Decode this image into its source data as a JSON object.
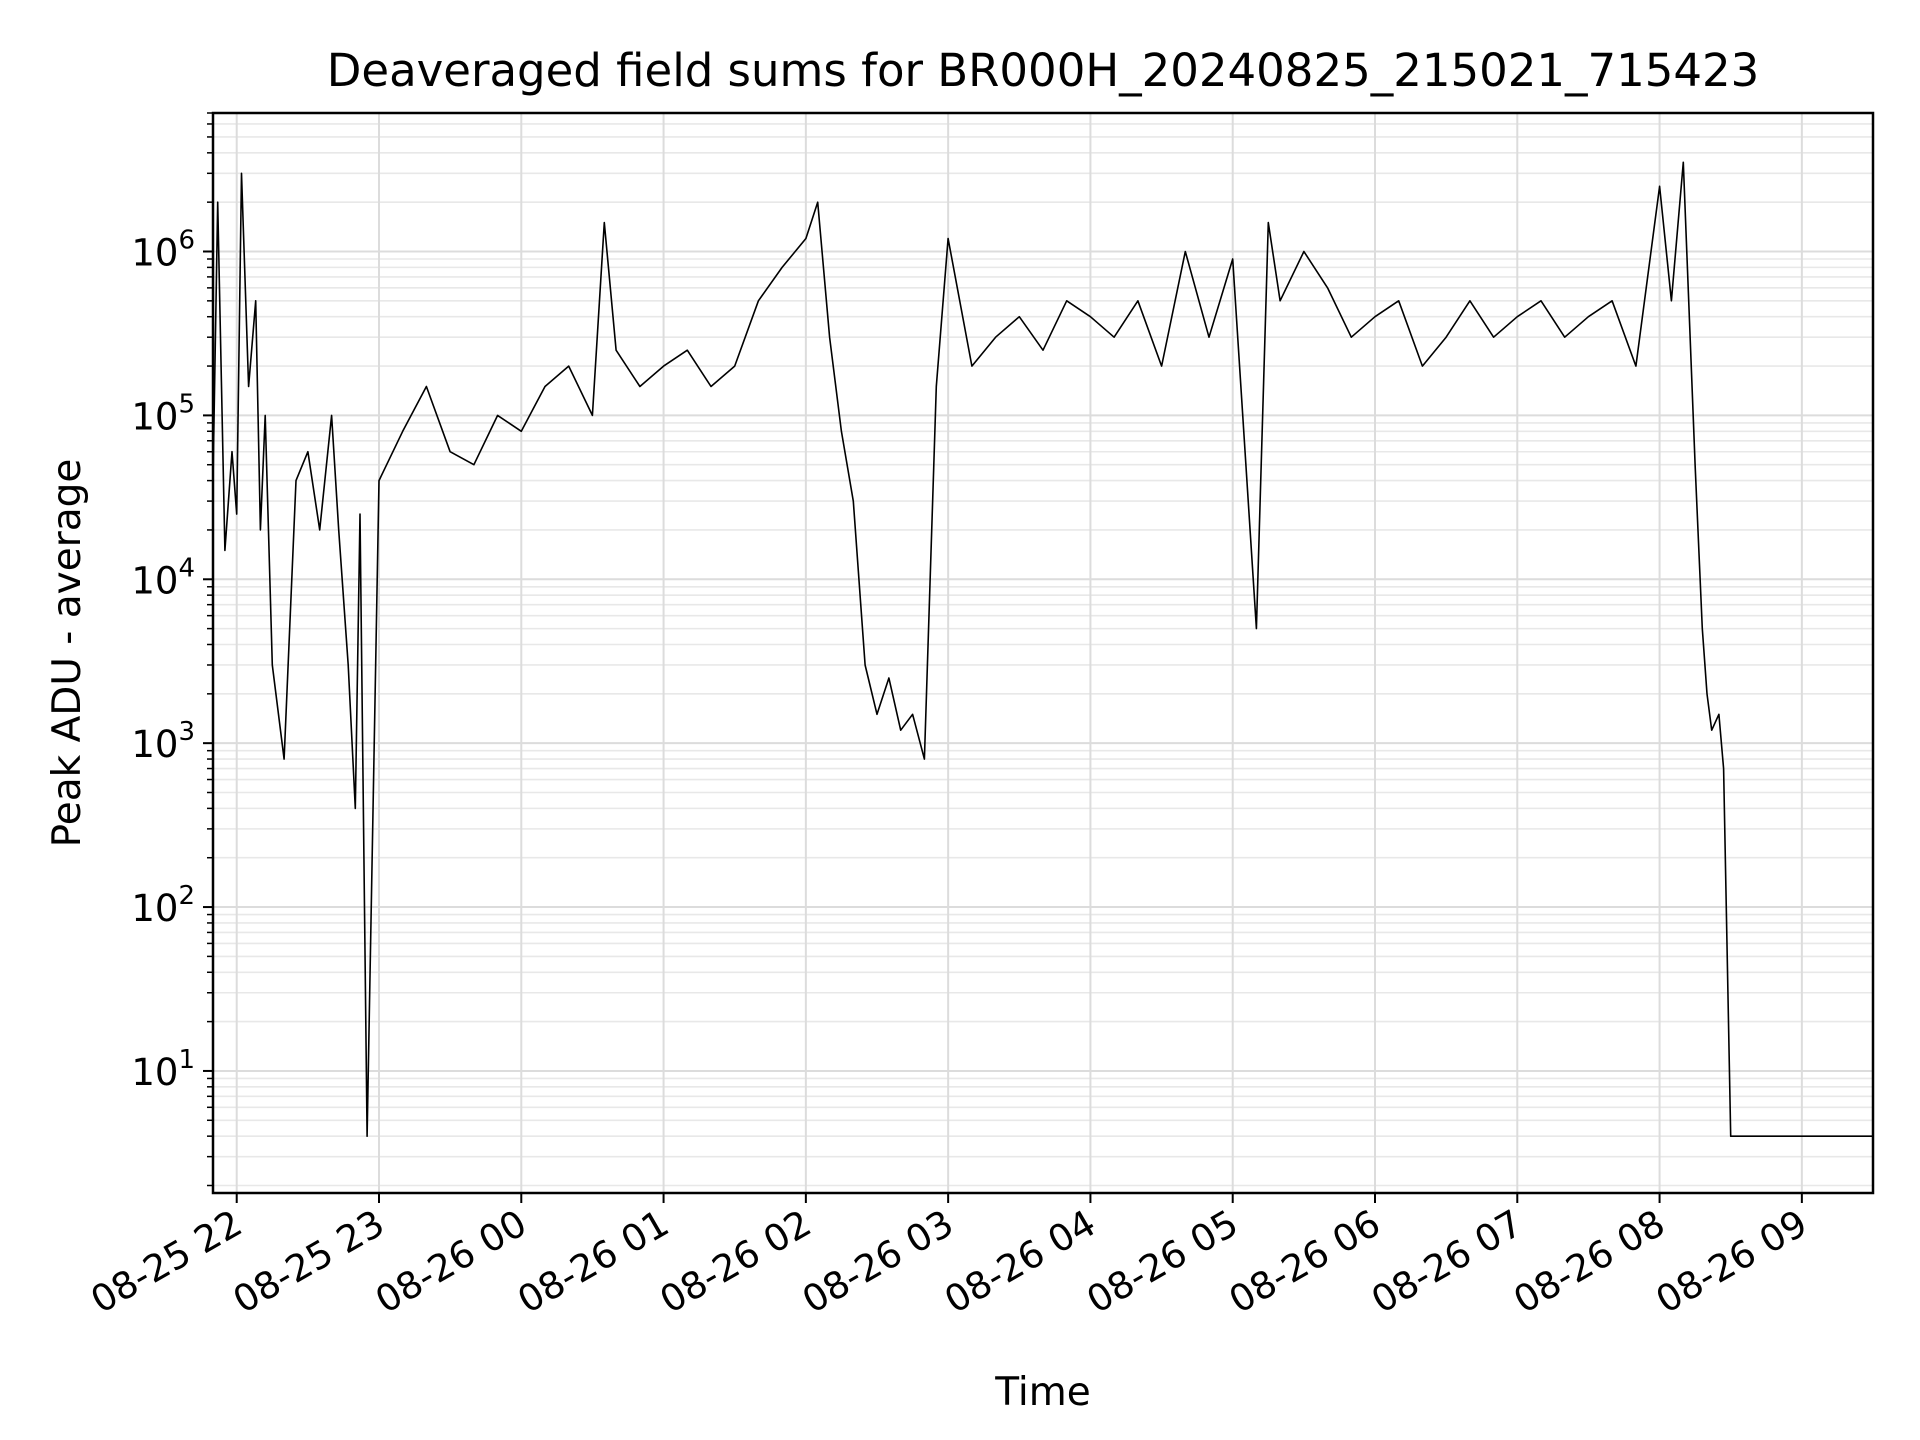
{
  "chart_data": {
    "type": "line",
    "title": "Deaveraged field sums for BR000H_20240825_215021_715423",
    "xlabel": "Time",
    "ylabel": "Peak ADU - average",
    "yscale": "log",
    "ylim": [
      1.8,
      7000000
    ],
    "xlim": [
      "2024-08-25 21:50",
      "2024-08-26 09:30"
    ],
    "grid": true,
    "line_color": "#000000",
    "x_ticks": [
      "08-25 22",
      "08-25 23",
      "08-26 00",
      "08-26 01",
      "08-26 02",
      "08-26 03",
      "08-26 04",
      "08-26 05",
      "08-26 06",
      "08-26 07",
      "08-26 08",
      "08-26 09"
    ],
    "y_ticks": [
      {
        "base": "10",
        "exp": "1"
      },
      {
        "base": "10",
        "exp": "2"
      },
      {
        "base": "10",
        "exp": "3"
      },
      {
        "base": "10",
        "exp": "4"
      },
      {
        "base": "10",
        "exp": "5"
      },
      {
        "base": "10",
        "exp": "6"
      }
    ],
    "x": [
      "2024-08-25 21:50",
      "2024-08-25 21:52",
      "2024-08-25 21:55",
      "2024-08-25 21:58",
      "2024-08-25 22:00",
      "2024-08-25 22:02",
      "2024-08-25 22:05",
      "2024-08-25 22:08",
      "2024-08-25 22:10",
      "2024-08-25 22:12",
      "2024-08-25 22:15",
      "2024-08-25 22:20",
      "2024-08-25 22:25",
      "2024-08-25 22:30",
      "2024-08-25 22:35",
      "2024-08-25 22:40",
      "2024-08-25 22:43",
      "2024-08-25 22:47",
      "2024-08-25 22:50",
      "2024-08-25 22:52",
      "2024-08-25 22:55",
      "2024-08-25 23:00",
      "2024-08-25 23:10",
      "2024-08-25 23:20",
      "2024-08-25 23:30",
      "2024-08-25 23:40",
      "2024-08-25 23:50",
      "2024-08-26 00:00",
      "2024-08-26 00:10",
      "2024-08-26 00:20",
      "2024-08-26 00:30",
      "2024-08-26 00:35",
      "2024-08-26 00:40",
      "2024-08-26 00:50",
      "2024-08-26 01:00",
      "2024-08-26 01:10",
      "2024-08-26 01:20",
      "2024-08-26 01:30",
      "2024-08-26 01:40",
      "2024-08-26 01:50",
      "2024-08-26 02:00",
      "2024-08-26 02:05",
      "2024-08-26 02:10",
      "2024-08-26 02:15",
      "2024-08-26 02:20",
      "2024-08-26 02:25",
      "2024-08-26 02:30",
      "2024-08-26 02:35",
      "2024-08-26 02:40",
      "2024-08-26 02:45",
      "2024-08-26 02:50",
      "2024-08-26 02:55",
      "2024-08-26 03:00",
      "2024-08-26 03:10",
      "2024-08-26 03:20",
      "2024-08-26 03:30",
      "2024-08-26 03:40",
      "2024-08-26 03:50",
      "2024-08-26 04:00",
      "2024-08-26 04:10",
      "2024-08-26 04:20",
      "2024-08-26 04:30",
      "2024-08-26 04:40",
      "2024-08-26 04:50",
      "2024-08-26 05:00",
      "2024-08-26 05:10",
      "2024-08-26 05:15",
      "2024-08-26 05:20",
      "2024-08-26 05:30",
      "2024-08-26 05:40",
      "2024-08-26 05:50",
      "2024-08-26 06:00",
      "2024-08-26 06:10",
      "2024-08-26 06:20",
      "2024-08-26 06:30",
      "2024-08-26 06:40",
      "2024-08-26 06:50",
      "2024-08-26 07:00",
      "2024-08-26 07:10",
      "2024-08-26 07:20",
      "2024-08-26 07:30",
      "2024-08-26 07:40",
      "2024-08-26 07:50",
      "2024-08-26 08:00",
      "2024-08-26 08:05",
      "2024-08-26 08:10",
      "2024-08-26 08:15",
      "2024-08-26 08:18",
      "2024-08-26 08:20",
      "2024-08-26 08:22",
      "2024-08-26 08:25",
      "2024-08-26 08:27",
      "2024-08-26 08:30",
      "2024-08-26 09:00",
      "2024-08-26 09:30"
    ],
    "y": [
      40000,
      2000000,
      15000,
      60000,
      25000,
      3000000,
      150000,
      500000,
      20000,
      100000,
      3000,
      800,
      40000,
      60000,
      20000,
      100000,
      20000,
      3000,
      400,
      25000,
      4,
      40000,
      80000,
      150000,
      60000,
      50000,
      100000,
      80000,
      150000,
      200000,
      100000,
      1500000,
      250000,
      150000,
      200000,
      250000,
      150000,
      200000,
      500000,
      800000,
      1200000,
      2000000,
      300000,
      80000,
      30000,
      3000,
      1500,
      2500,
      1200,
      1500,
      800,
      150000,
      1200000,
      200000,
      300000,
      400000,
      250000,
      500000,
      400000,
      300000,
      500000,
      200000,
      1000000,
      300000,
      900000,
      5000,
      1500000,
      500000,
      1000000,
      600000,
      300000,
      400000,
      500000,
      200000,
      300000,
      500000,
      300000,
      400000,
      500000,
      300000,
      400000,
      500000,
      200000,
      2500000,
      500000,
      3500000,
      50000,
      5000,
      2000,
      1200,
      1500,
      700,
      4,
      4,
      4
    ]
  }
}
